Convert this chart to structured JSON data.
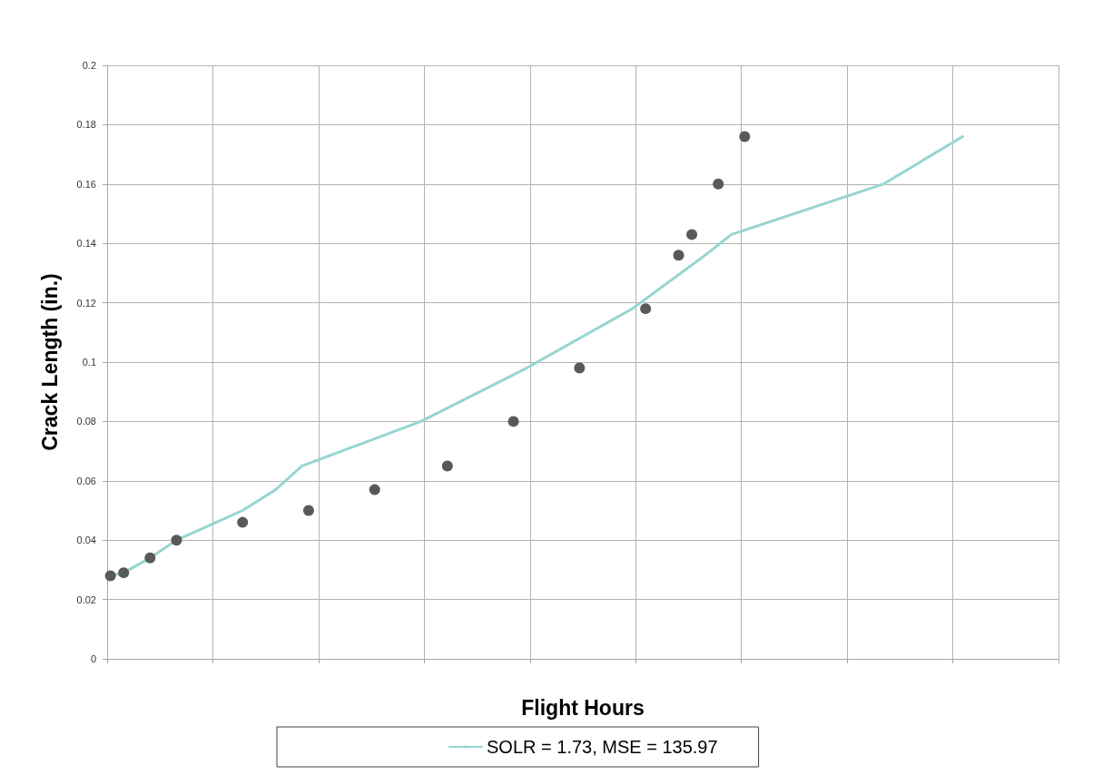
{
  "chart_data": {
    "type": "scatter",
    "xlabel": "Flight Hours",
    "ylabel": "Crack Length (in.)",
    "categories": [
      null,
      null,
      null,
      null,
      null,
      null,
      null,
      null,
      null,
      null,
      null,
      null,
      null,
      null,
      null,
      null,
      null,
      null,
      null,
      null,
      null,
      null,
      null,
      null,
      null,
      null,
      null,
      null,
      null,
      null,
      null,
      null,
      null,
      null,
      null,
      null,
      null,
      null,
      null,
      null,
      null,
      null,
      null,
      null,
      null,
      null,
      null,
      null,
      null,
      null,
      null,
      null,
      null,
      null,
      null,
      null,
      null,
      null,
      null,
      null,
      null,
      null,
      null,
      null,
      null,
      null,
      null,
      null,
      null,
      null,
      null,
      null,
      null,
      null,
      null,
      null,
      null,
      null,
      null,
      null,
      null,
      null,
      null,
      null,
      null,
      null,
      null,
      null,
      null,
      null,
      null,
      null,
      null,
      null,
      null,
      null,
      null,
      null,
      null,
      null,
      null,
      null,
      null,
      null,
      null,
      null,
      null,
      null,
      null,
      null,
      null,
      null,
      null,
      null,
      null,
      null,
      null,
      null,
      null,
      null,
      null,
      null,
      null,
      null,
      null,
      null,
      null,
      null,
      null,
      null,
      null,
      null,
      null,
      null,
      null,
      null,
      null,
      null,
      null,
      null,
      null,
      null,
      null,
      null
    ],
    "ylim": [
      0,
      0.2
    ],
    "yticks": [
      0,
      0.02,
      0.04,
      0.06,
      0.08,
      0.1,
      0.12,
      0.14,
      0.16,
      0.18,
      0.2
    ],
    "tick_labels": "y",
    "grid": true,
    "legend": "bottom",
    "series": [
      {
        "color": "#595959",
        "marker": "circle",
        "values": [
          0.028,
          null,
          0.029,
          null,
          null,
          null,
          0.034,
          null,
          null,
          null,
          0.04,
          null,
          null,
          null,
          null,
          null,
          null,
          null,
          null,
          null,
          0.046,
          null,
          null,
          null,
          null,
          null,
          null,
          null,
          null,
          null,
          0.05,
          null,
          null,
          null,
          null,
          null,
          null,
          null,
          null,
          null,
          0.057,
          null,
          null,
          null,
          null,
          null,
          null,
          null,
          null,
          null,
          null,
          0.065,
          null,
          null,
          null,
          null,
          null,
          null,
          null,
          null,
          null,
          0.08,
          null,
          null,
          null,
          null,
          null,
          null,
          null,
          null,
          null,
          0.098,
          null,
          null,
          null,
          null,
          null,
          null,
          null,
          null,
          null,
          0.118,
          null,
          null,
          null,
          null,
          0.136,
          null,
          0.143,
          null,
          null,
          null,
          0.16,
          null,
          null,
          null,
          0.176,
          null,
          null,
          null,
          null,
          null,
          null,
          null,
          null,
          null,
          null,
          null,
          null,
          null,
          null,
          null,
          null,
          null,
          null,
          null,
          null,
          null,
          null,
          null,
          null,
          null,
          null,
          null,
          null,
          null,
          null,
          null,
          null,
          null,
          null,
          null,
          null,
          null,
          null,
          null,
          null,
          null,
          null,
          null,
          null,
          null,
          null,
          null
        ]
      },
      {
        "type": "line",
        "name": "SOLR = 1.73, MSE = 135.97",
        "color": "#96d5d2",
        "marker": "none",
        "values": [
          0.028,
          null,
          0.029,
          null,
          null,
          null,
          0.034,
          null,
          null,
          null,
          0.04,
          null,
          null,
          null,
          null,
          null,
          0.046,
          null,
          null,
          null,
          0.05,
          null,
          null,
          null,
          null,
          0.057,
          null,
          null,
          null,
          0.065,
          null,
          null,
          null,
          null,
          null,
          null,
          null,
          null,
          null,
          null,
          null,
          null,
          null,
          null,
          null,
          null,
          null,
          0.08,
          null,
          null,
          null,
          null,
          null,
          null,
          null,
          null,
          null,
          null,
          null,
          null,
          null,
          null,
          null,
          0.098,
          null,
          null,
          null,
          null,
          null,
          null,
          null,
          null,
          null,
          null,
          null,
          null,
          null,
          null,
          null,
          0.118,
          null,
          null,
          null,
          null,
          null,
          null,
          null,
          null,
          null,
          null,
          0.136,
          null,
          null,
          null,
          0.143,
          null,
          null,
          null,
          null,
          null,
          null,
          null,
          null,
          null,
          null,
          null,
          null,
          null,
          null,
          null,
          null,
          null,
          null,
          null,
          null,
          null,
          null,
          0.16,
          null,
          null,
          null,
          null,
          null,
          null,
          null,
          null,
          null,
          null,
          null,
          0.176,
          null,
          null,
          null,
          null,
          null,
          null,
          null,
          null,
          null,
          null,
          null,
          null,
          null,
          null
        ]
      }
    ]
  }
}
